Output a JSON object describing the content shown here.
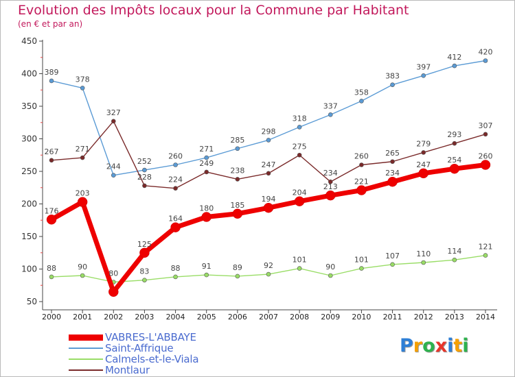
{
  "header": {
    "title": "Evolution des Impôts locaux pour la Commune par Habitant",
    "subtitle": "(en € et par an)"
  },
  "chart_data": {
    "type": "line",
    "title": "Evolution des Impôts locaux pour la Commune par Habitant",
    "subtitle": "(en € et par an)",
    "xlabel": "",
    "ylabel": "",
    "categories": [
      "2000",
      "2001",
      "2002",
      "2003",
      "2004",
      "2005",
      "2006",
      "2007",
      "2008",
      "2009",
      "2010",
      "2011",
      "2012",
      "2013",
      "2014"
    ],
    "ylim": [
      50,
      450
    ],
    "yticks": [
      50,
      100,
      150,
      200,
      250,
      300,
      350,
      400,
      450
    ],
    "grid": false,
    "legend_position": "bottom-left",
    "series": [
      {
        "name": "VABRES-L'ABBAYE",
        "color": "#ee0000",
        "values": [
          176,
          203,
          65,
          125,
          164,
          180,
          185,
          194,
          204,
          213,
          221,
          234,
          247,
          254,
          260
        ],
        "labels": [
          "176",
          "203",
          "",
          "125",
          "164",
          "180",
          "185",
          "194",
          "204",
          "213",
          "221",
          "234",
          "247",
          "254",
          "260"
        ]
      },
      {
        "name": "Saint-Affrique",
        "color": "#5b9bd5",
        "values": [
          389,
          378,
          244,
          252,
          260,
          271,
          285,
          298,
          318,
          337,
          358,
          383,
          397,
          412,
          420
        ],
        "labels": [
          "389",
          "378",
          "244",
          "252",
          "260",
          "271",
          "285",
          "298",
          "318",
          "337",
          "358",
          "383",
          "397",
          "412",
          "420"
        ]
      },
      {
        "name": "Calmels-et-le-Viala",
        "color": "#99dd66",
        "values": [
          88,
          90,
          80,
          83,
          88,
          91,
          89,
          92,
          101,
          90,
          101,
          107,
          110,
          114,
          121
        ],
        "labels": [
          "88",
          "90",
          "80",
          "83",
          "88",
          "91",
          "89",
          "92",
          "101",
          "90",
          "101",
          "107",
          "110",
          "114",
          "121"
        ]
      },
      {
        "name": "Montlaur",
        "color": "#7a2a2a",
        "values": [
          267,
          271,
          327,
          228,
          224,
          249,
          238,
          247,
          275,
          234,
          260,
          265,
          279,
          293,
          307
        ],
        "labels": [
          "267",
          "271",
          "327",
          "228",
          "224",
          "249",
          "238",
          "247",
          "275",
          "234",
          "260",
          "265",
          "279",
          "293",
          "307"
        ]
      }
    ]
  },
  "logo": {
    "letters": [
      "P",
      "r",
      "o",
      "x",
      "i",
      "t",
      "i"
    ],
    "colors": [
      "#2e7fd6",
      "#f5a000",
      "#2eb24e",
      "#e8352a",
      "#2e7fd6",
      "#f5a000",
      "#2eb24e"
    ]
  }
}
